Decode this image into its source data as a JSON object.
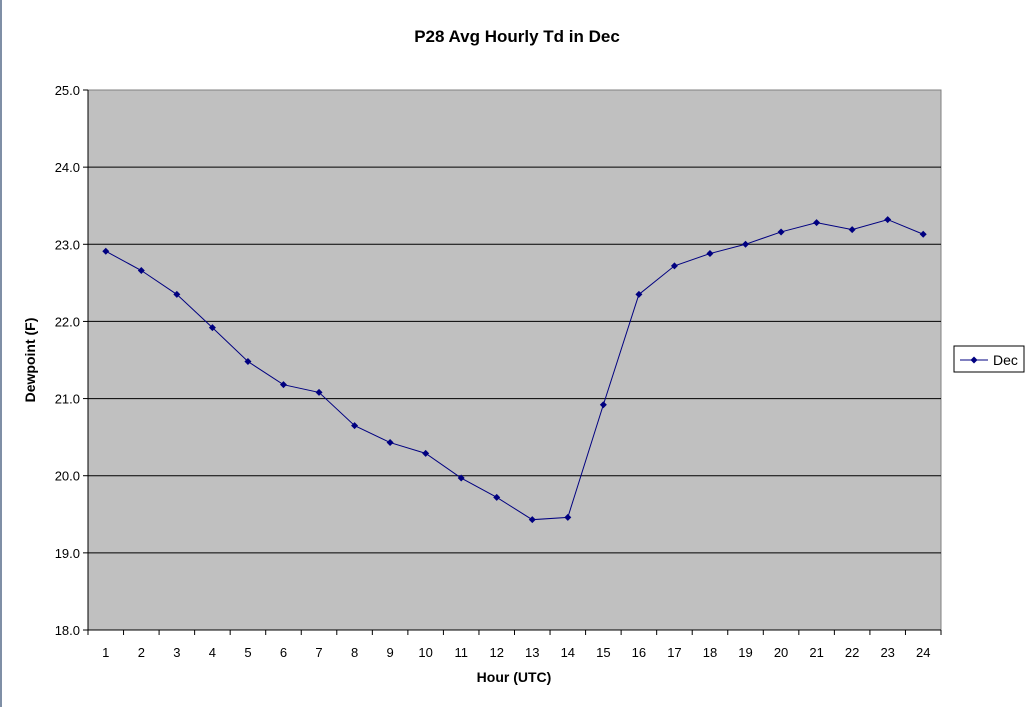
{
  "chart_data": {
    "type": "line",
    "title": "P28 Avg Hourly Td in Dec",
    "xlabel": "Hour (UTC)",
    "ylabel": "Dewpoint (F)",
    "categories": [
      "1",
      "2",
      "3",
      "4",
      "5",
      "6",
      "7",
      "8",
      "9",
      "10",
      "11",
      "12",
      "13",
      "14",
      "15",
      "16",
      "17",
      "18",
      "19",
      "20",
      "21",
      "22",
      "23",
      "24"
    ],
    "series": [
      {
        "name": "Dec",
        "values": [
          22.91,
          22.66,
          22.35,
          21.92,
          21.48,
          21.18,
          21.08,
          20.65,
          20.43,
          20.29,
          19.97,
          19.72,
          19.43,
          19.46,
          20.92,
          22.35,
          22.72,
          22.88,
          23.0,
          23.16,
          23.28,
          23.19,
          23.32,
          23.13
        ]
      }
    ],
    "ylim": [
      18.0,
      25.0
    ],
    "yticks": [
      "18.0",
      "19.0",
      "20.0",
      "21.0",
      "22.0",
      "23.0",
      "24.0",
      "25.0"
    ],
    "grid": "horizontal",
    "legend_position": "right",
    "colors": {
      "plot_background": "#c0c0c0",
      "series_line": "#000080",
      "gridline": "#000000"
    }
  }
}
